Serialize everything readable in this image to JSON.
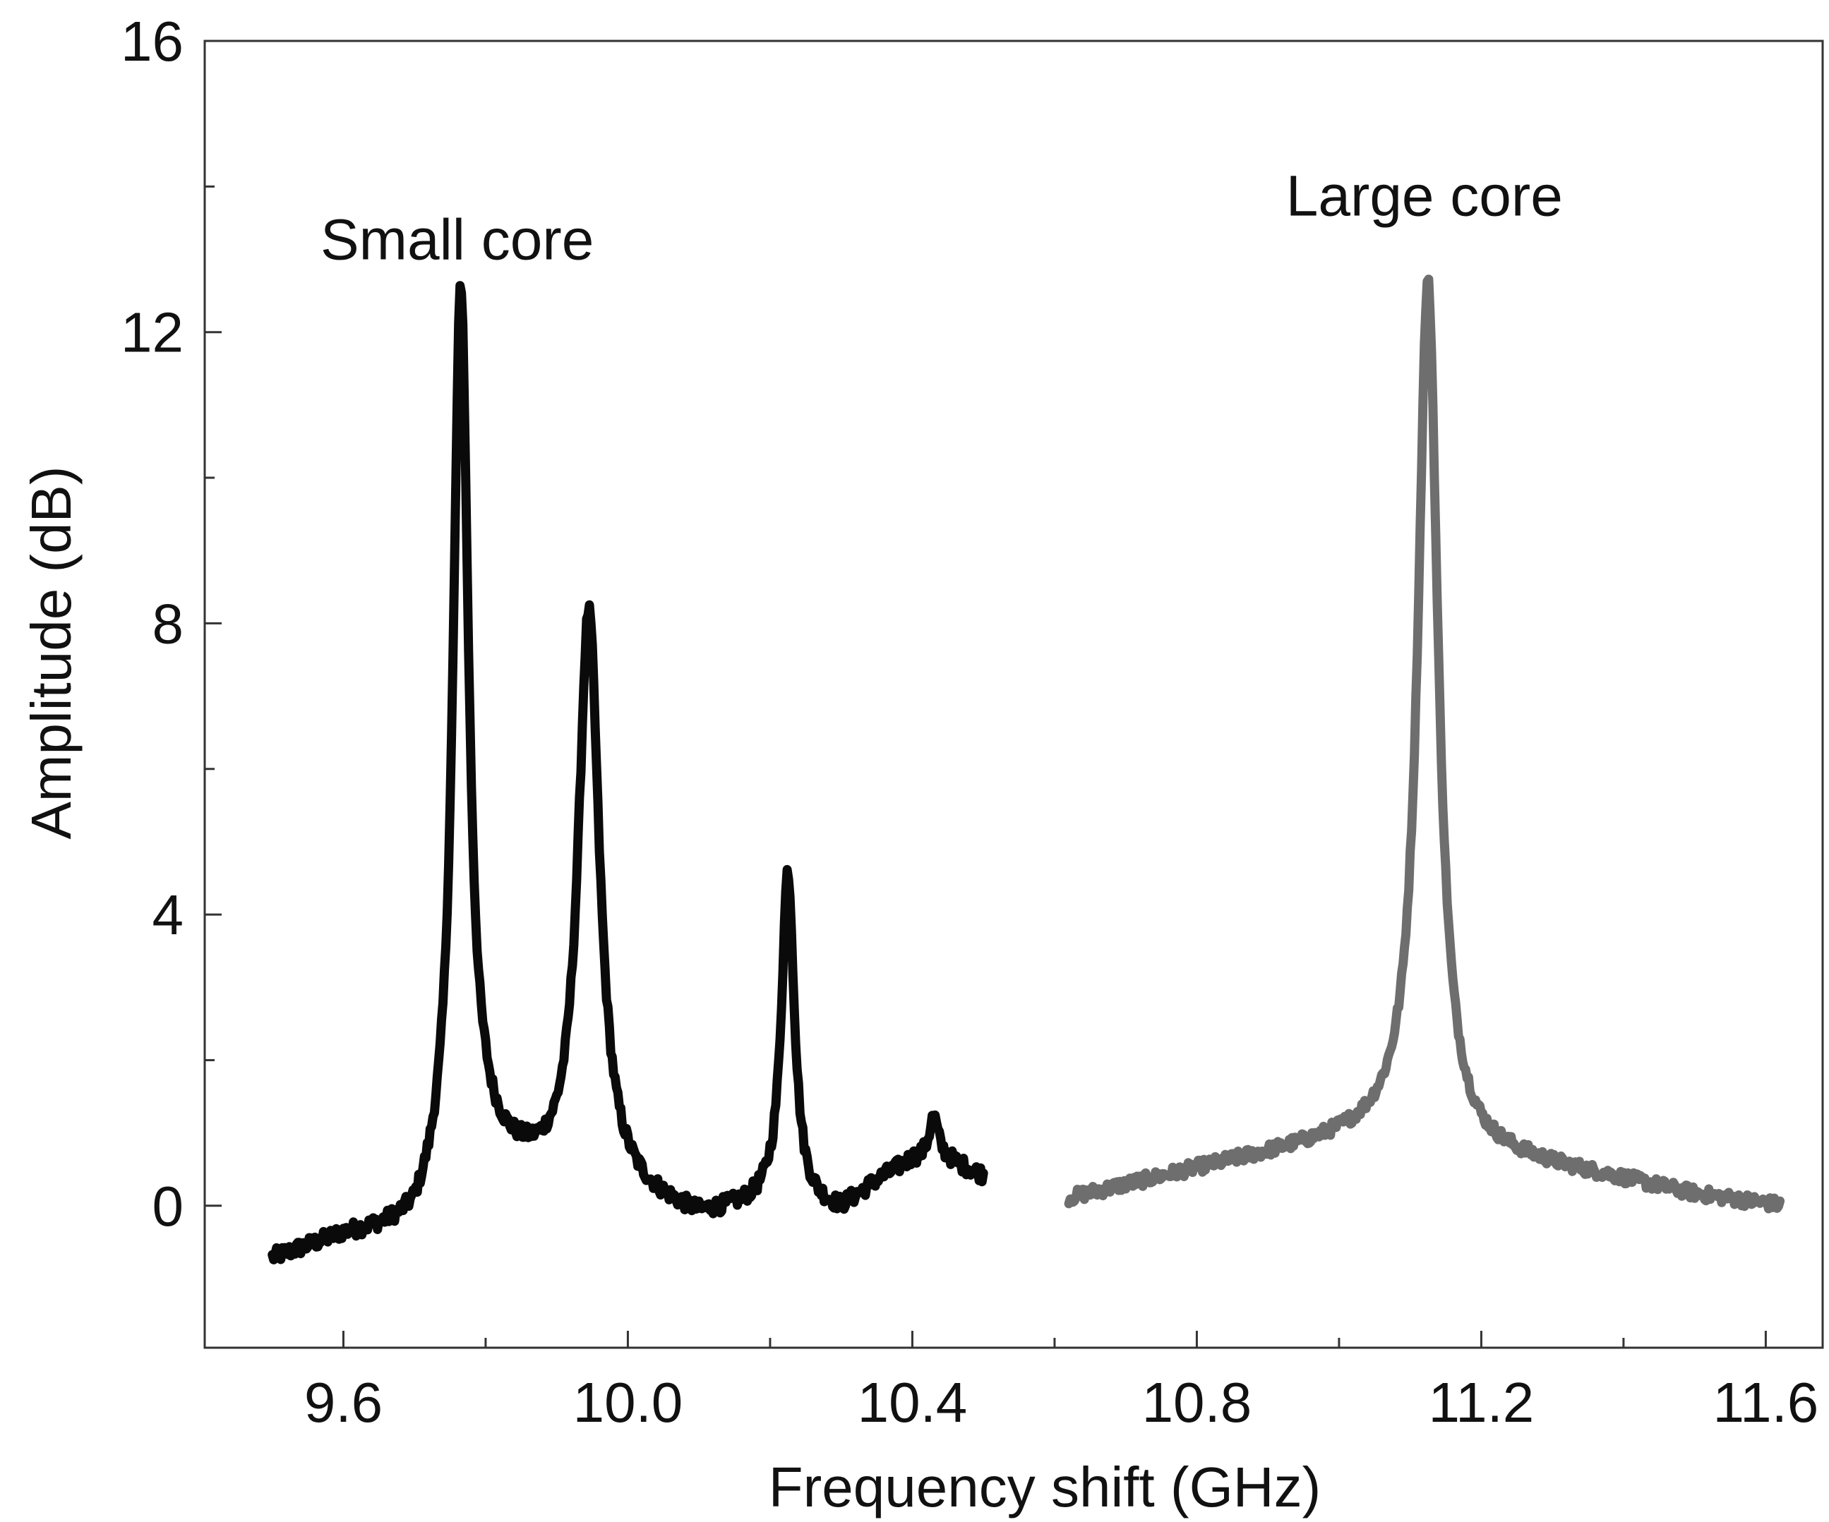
{
  "chart_data": {
    "type": "line",
    "title": "",
    "xlabel": "Frequency shift (GHz)",
    "ylabel": "Amplitude (dB)",
    "xlim": [
      9.405,
      11.68
    ],
    "ylim": [
      -1.95,
      16
    ],
    "x_ticks": [
      9.6,
      10.0,
      10.4,
      10.8,
      11.2,
      11.6
    ],
    "x_tick_labels": [
      "9.6",
      "10.0",
      "10.4",
      "10.8",
      "11.2",
      "11.6"
    ],
    "x_minor_ticks": [
      9.8,
      10.2,
      10.6,
      11.0,
      11.4
    ],
    "y_ticks": [
      0,
      4,
      8,
      12,
      16
    ],
    "y_tick_labels": [
      "0",
      "4",
      "8",
      "12",
      "16"
    ],
    "y_minor_ticks": [
      2,
      6,
      10,
      14
    ],
    "grid": false,
    "series": [
      {
        "name": "Small core",
        "color": "#0a0a0a",
        "x_range": [
          9.5,
          10.5
        ],
        "baseline": [
          [
            9.5,
            -0.75
          ],
          [
            9.6,
            -0.45
          ],
          [
            9.7,
            -0.35
          ],
          [
            9.73,
            0.0
          ],
          [
            9.8,
            0.6
          ],
          [
            9.9,
            0.3
          ],
          [
            10.0,
            0.1
          ],
          [
            10.1,
            -0.2
          ],
          [
            10.2,
            0.0
          ],
          [
            10.3,
            -0.1
          ],
          [
            10.35,
            0.3
          ],
          [
            10.4,
            0.6
          ],
          [
            10.45,
            0.6
          ],
          [
            10.5,
            0.4
          ]
        ],
        "peaks": [
          {
            "center": 9.765,
            "height": 12.3,
            "width": 0.013
          },
          {
            "center": 9.945,
            "height": 7.9,
            "width": 0.018
          },
          {
            "center": 10.225,
            "height": 4.6,
            "width": 0.011
          },
          {
            "center": 10.43,
            "height": 0.6,
            "width": 0.008
          }
        ],
        "noise": 0.11,
        "samples": 500
      },
      {
        "name": "Large core",
        "color": "#6e6e6e",
        "x_range": [
          10.62,
          11.62
        ],
        "baseline": [
          [
            10.62,
            0.1
          ],
          [
            10.8,
            0.5
          ],
          [
            11.0,
            0.9
          ],
          [
            11.1,
            1.1
          ],
          [
            11.2,
            0.7
          ],
          [
            11.4,
            0.35
          ],
          [
            11.5,
            0.15
          ],
          [
            11.62,
            0.0
          ]
        ],
        "peaks": [
          {
            "center": 11.125,
            "height": 11.7,
            "width": 0.017
          }
        ],
        "noise": 0.09,
        "samples": 500
      }
    ],
    "annotations": [
      {
        "text": "Small core",
        "x": 9.76,
        "y": 13.0
      },
      {
        "text": "Large core",
        "x": 11.12,
        "y": 13.6
      }
    ]
  }
}
